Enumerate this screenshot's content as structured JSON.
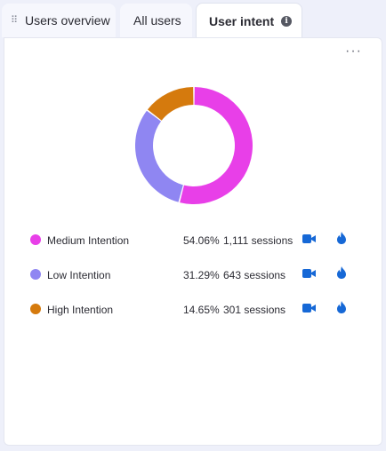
{
  "tabs": [
    {
      "label": "Users overview"
    },
    {
      "label": "All users"
    },
    {
      "label": "User intent",
      "active": true,
      "icon": "info-icon"
    }
  ],
  "card": {
    "menu_icon": "more-options-icon",
    "chart_data": {
      "type": "pie",
      "categories": [
        "Medium Intention",
        "Low Intention",
        "High Intention"
      ],
      "values": [
        54.06,
        31.29,
        14.65
      ],
      "colors": [
        "#e83fe8",
        "#8f86f2",
        "#d57a0d"
      ],
      "donut": true
    },
    "legend": [
      {
        "label": "Medium Intention",
        "percent": "54.06%",
        "sessions": "1,111 sessions",
        "color": "#e83fe8"
      },
      {
        "label": "Low Intention",
        "percent": "31.29%",
        "sessions": "643 sessions",
        "color": "#8f86f2"
      },
      {
        "label": "High Intention",
        "percent": "14.65%",
        "sessions": "301 sessions",
        "color": "#d57a0d"
      }
    ],
    "accent_color": "#1668d6"
  }
}
